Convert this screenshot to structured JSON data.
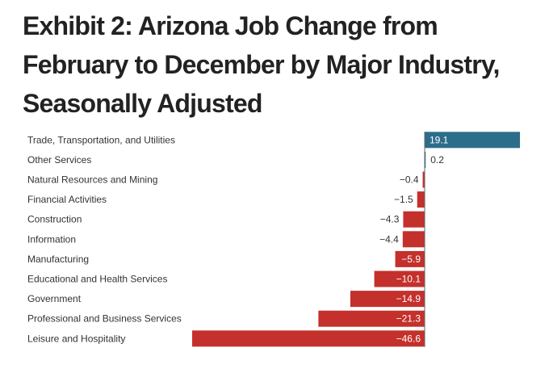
{
  "chart_data": {
    "type": "bar",
    "orientation": "horizontal",
    "title": "Exhibit 2: Arizona Job Change from February to December by Major Industry, Seasonally Adjusted",
    "categories": [
      "Trade, Transportation, and Utilities",
      "Other Services",
      "Natural Resources and Mining",
      "Financial Activities",
      "Construction",
      "Information",
      "Manufacturing",
      "Educational and Health Services",
      "Government",
      "Professional and Business Services",
      "Leisure and Hospitality"
    ],
    "values": [
      19.1,
      0.2,
      -0.4,
      -1.5,
      -4.3,
      -4.4,
      -5.9,
      -10.1,
      -14.9,
      -21.3,
      -46.6
    ],
    "value_labels": [
      "19.1",
      "0.2",
      "−0.4",
      "−1.5",
      "−4.3",
      "−4.4",
      "−5.9",
      "−10.1",
      "−14.9",
      "−21.3",
      "−46.6"
    ],
    "colors": {
      "positive": "#2c6e8a",
      "negative": "#c4302b"
    },
    "grid": false,
    "legend": "none"
  }
}
